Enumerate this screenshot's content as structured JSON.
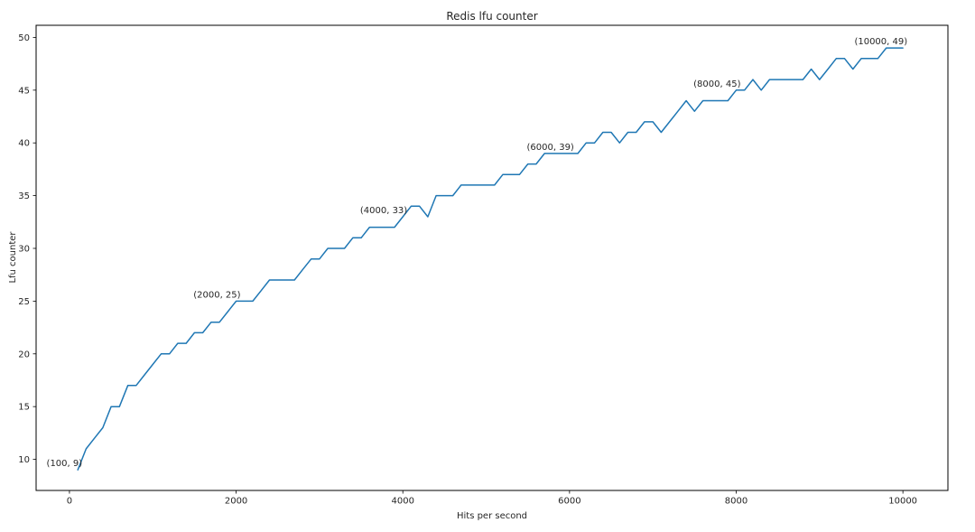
{
  "figure": {
    "title": "Redis lfu counter",
    "xlabel": "Hits per second",
    "ylabel": "Lfu counter"
  },
  "chart_data": {
    "type": "line",
    "title": "Redis lfu counter",
    "xlabel": "Hits per second",
    "ylabel": "Lfu counter",
    "line_color": "#1f77b4",
    "spine_color": "#000000",
    "text_color": "#262626",
    "background": "#ffffff",
    "grid": false,
    "legend": null,
    "xlim": [
      -400,
      10540
    ],
    "ylim": [
      7.05,
      51.15
    ],
    "x_ticks": [
      0,
      2000,
      4000,
      6000,
      8000,
      10000
    ],
    "y_ticks": [
      10,
      15,
      20,
      25,
      30,
      35,
      40,
      45,
      50
    ],
    "x_start": 100,
    "x_step": 100,
    "x": [
      100,
      200,
      300,
      400,
      500,
      600,
      700,
      800,
      900,
      1000,
      1100,
      1200,
      1300,
      1400,
      1500,
      1600,
      1700,
      1800,
      1900,
      2000,
      2100,
      2200,
      2300,
      2400,
      2500,
      2600,
      2700,
      2800,
      2900,
      3000,
      3100,
      3200,
      3300,
      3400,
      3500,
      3600,
      3700,
      3800,
      3900,
      4000,
      4100,
      4200,
      4300,
      4400,
      4500,
      4600,
      4700,
      4800,
      4900,
      5000,
      5100,
      5200,
      5300,
      5400,
      5500,
      5600,
      5700,
      5800,
      5900,
      6000,
      6100,
      6200,
      6300,
      6400,
      6500,
      6600,
      6700,
      6800,
      6900,
      7000,
      7100,
      7200,
      7300,
      7400,
      7500,
      7600,
      7700,
      7800,
      7900,
      8000,
      8100,
      8200,
      8300,
      8400,
      8500,
      8600,
      8700,
      8800,
      8900,
      9000,
      9100,
      9200,
      9300,
      9400,
      9500,
      9600,
      9700,
      9800,
      9900,
      10000
    ],
    "y": [
      9,
      11,
      12,
      13,
      15,
      15,
      17,
      17,
      18,
      19,
      20,
      20,
      21,
      21,
      22,
      22,
      23,
      23,
      24,
      25,
      25,
      25,
      26,
      27,
      27,
      27,
      27,
      28,
      29,
      29,
      30,
      30,
      30,
      31,
      31,
      32,
      32,
      32,
      32,
      33,
      34,
      34,
      33,
      35,
      35,
      35,
      36,
      36,
      36,
      36,
      36,
      37,
      37,
      37,
      38,
      38,
      39,
      39,
      39,
      39,
      39,
      40,
      40,
      41,
      41,
      40,
      41,
      41,
      42,
      42,
      41,
      42,
      43,
      44,
      43,
      44,
      44,
      44,
      44,
      45,
      45,
      46,
      45,
      46,
      46,
      46,
      46,
      46,
      47,
      46,
      47,
      48,
      48,
      47,
      48,
      48,
      48,
      49,
      49,
      49
    ],
    "annotations": [
      {
        "label": "(100, 9)",
        "x": 100,
        "y": 9
      },
      {
        "label": "(2000, 25)",
        "x": 2000,
        "y": 25
      },
      {
        "label": "(4000, 33)",
        "x": 4000,
        "y": 33
      },
      {
        "label": "(6000, 39)",
        "x": 6000,
        "y": 39
      },
      {
        "label": "(8000, 45)",
        "x": 8000,
        "y": 45
      },
      {
        "label": "(10000, 49)",
        "x": 10000,
        "y": 49
      }
    ]
  }
}
